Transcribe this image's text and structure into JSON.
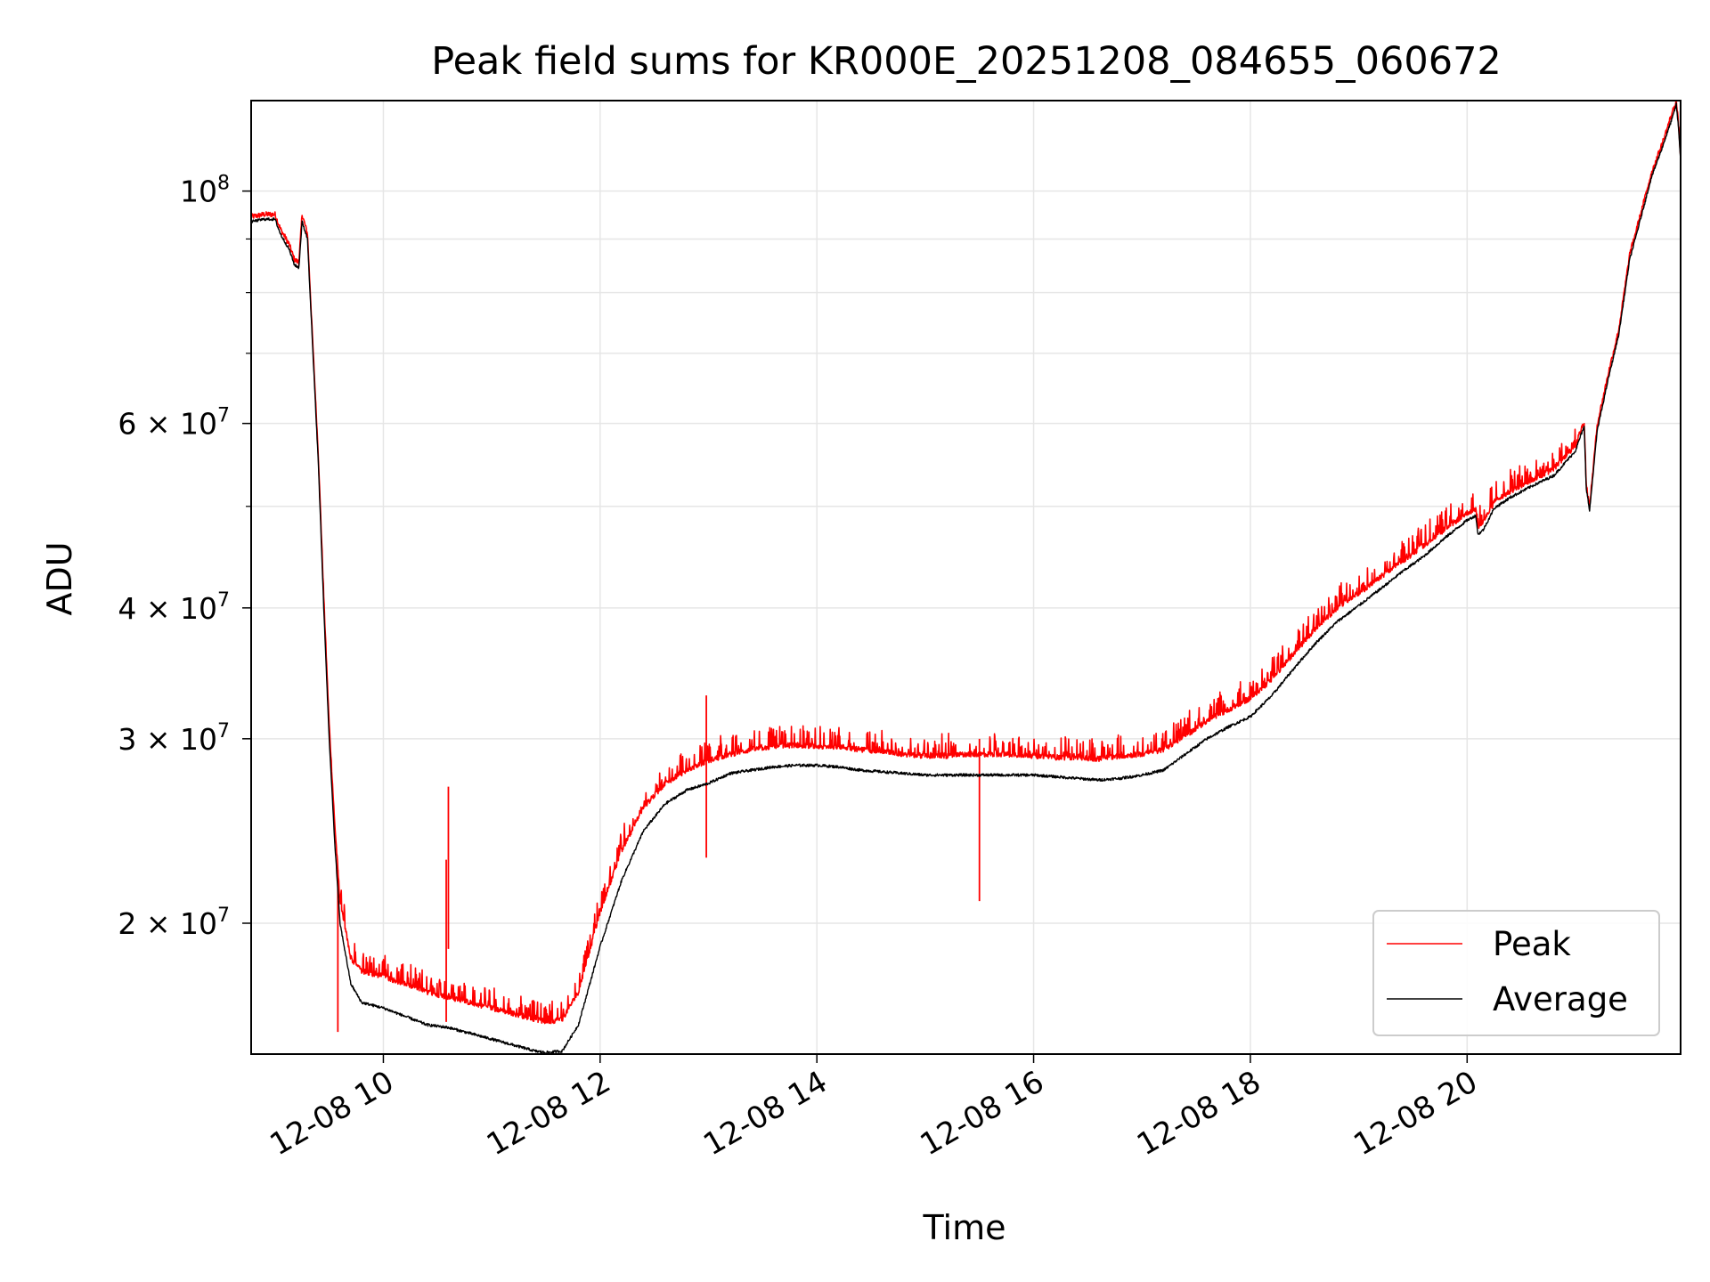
{
  "chart_data": {
    "type": "line",
    "title": "Peak field sums for KR000E_20251208_084655_060672",
    "xlabel": "Time",
    "ylabel": "ADU",
    "yscale": "log",
    "ylim": [
      15000000,
      122000000
    ],
    "xlim_hours": [
      8.78,
      21.97
    ],
    "grid": true,
    "legend_position": "lower-right",
    "x_ticks": [
      {
        "value": 10,
        "label": "12-08 10"
      },
      {
        "value": 12,
        "label": "12-08 12"
      },
      {
        "value": 14,
        "label": "12-08 14"
      },
      {
        "value": 16,
        "label": "12-08 16"
      },
      {
        "value": 18,
        "label": "12-08 18"
      },
      {
        "value": 20,
        "label": "12-08 20"
      }
    ],
    "y_ticks": [
      {
        "value": 20000000,
        "mantissa": "2 × 10",
        "exponent": "7"
      },
      {
        "value": 30000000,
        "mantissa": "3 × 10",
        "exponent": "7"
      },
      {
        "value": 40000000,
        "mantissa": "4 × 10",
        "exponent": "7"
      },
      {
        "value": 60000000,
        "mantissa": "6 × 10",
        "exponent": "7"
      },
      {
        "value": 100000000,
        "mantissa": "10",
        "exponent": "8"
      }
    ],
    "y_minor_ticks": [
      50000000,
      70000000,
      80000000,
      90000000
    ],
    "series": [
      {
        "name": "Average",
        "color": "#000000",
        "x": [
          8.78,
          8.9,
          9.0,
          9.05,
          9.13,
          9.18,
          9.22,
          9.25,
          9.3,
          9.35,
          9.4,
          9.45,
          9.5,
          9.55,
          9.6,
          9.7,
          9.8,
          10.0,
          10.2,
          10.4,
          10.6,
          10.8,
          11.0,
          11.2,
          11.4,
          11.5,
          11.65,
          11.8,
          12.0,
          12.2,
          12.4,
          12.6,
          12.8,
          13.0,
          13.2,
          13.4,
          13.6,
          13.8,
          14.0,
          14.2,
          14.4,
          14.6,
          14.8,
          15.0,
          15.2,
          15.4,
          15.6,
          15.8,
          16.0,
          16.2,
          16.4,
          16.6,
          16.8,
          17.0,
          17.2,
          17.4,
          17.6,
          17.8,
          18.0,
          18.2,
          18.4,
          18.6,
          18.8,
          19.0,
          19.2,
          19.4,
          19.6,
          19.8,
          20.0,
          20.08,
          20.1,
          20.15,
          20.25,
          20.4,
          20.6,
          20.8,
          21.0,
          21.05,
          21.08,
          21.1,
          21.13,
          21.2,
          21.3,
          21.4,
          21.5,
          21.6,
          21.7,
          21.8,
          21.9,
          21.93,
          21.95,
          21.97
        ],
        "values": [
          93500000,
          94000000,
          94000000,
          91000000,
          88000000,
          85000000,
          84500000,
          93500000,
          90000000,
          70000000,
          55000000,
          40000000,
          30000000,
          24000000,
          20000000,
          17500000,
          16800000,
          16600000,
          16300000,
          16000000,
          15900000,
          15700000,
          15500000,
          15300000,
          15100000,
          15050000,
          15100000,
          16000000,
          19000000,
          22000000,
          24500000,
          26000000,
          26800000,
          27200000,
          27800000,
          28000000,
          28200000,
          28300000,
          28300000,
          28200000,
          28000000,
          27900000,
          27800000,
          27700000,
          27700000,
          27700000,
          27700000,
          27700000,
          27700000,
          27600000,
          27500000,
          27400000,
          27500000,
          27700000,
          28000000,
          29000000,
          30000000,
          30800000,
          31500000,
          33000000,
          35000000,
          37000000,
          38800000,
          40200000,
          41700000,
          43300000,
          44800000,
          46700000,
          48500000,
          49000000,
          47000000,
          47500000,
          49800000,
          51000000,
          52300000,
          53500000,
          56500000,
          58500000,
          59500000,
          52000000,
          49500000,
          59000000,
          66000000,
          73000000,
          86000000,
          94000000,
          103000000,
          110000000,
          118000000,
          121000000,
          115000000,
          107000000
        ]
      },
      {
        "name": "Peak",
        "color": "#ff0000",
        "x": [
          8.78,
          8.9,
          9.0,
          9.05,
          9.13,
          9.18,
          9.22,
          9.25,
          9.3,
          9.35,
          9.4,
          9.45,
          9.5,
          9.55,
          9.6,
          9.7,
          9.8,
          10.0,
          10.2,
          10.4,
          10.6,
          10.8,
          11.0,
          11.2,
          11.4,
          11.5,
          11.65,
          11.8,
          12.0,
          12.2,
          12.4,
          12.6,
          12.8,
          13.0,
          13.2,
          13.4,
          13.6,
          13.8,
          14.0,
          14.2,
          14.4,
          14.6,
          14.8,
          15.0,
          15.2,
          15.4,
          15.6,
          15.8,
          16.0,
          16.2,
          16.4,
          16.6,
          16.8,
          17.0,
          17.2,
          17.4,
          17.6,
          17.8,
          18.0,
          18.2,
          18.4,
          18.6,
          18.8,
          19.0,
          19.2,
          19.4,
          19.6,
          19.8,
          20.0,
          20.08,
          20.1,
          20.15,
          20.25,
          20.4,
          20.6,
          20.8,
          21.0,
          21.05,
          21.08,
          21.1,
          21.13,
          21.2,
          21.3,
          21.4,
          21.5,
          21.6,
          21.7,
          21.8,
          21.9,
          21.93,
          21.95,
          21.97
        ],
        "values": [
          94500000,
          95000000,
          95000000,
          92000000,
          89000000,
          86000000,
          85500000,
          95000000,
          91000000,
          71000000,
          56000000,
          41000000,
          31000000,
          25000000,
          21000000,
          18500000,
          18000000,
          17800000,
          17500000,
          17200000,
          17000000,
          16800000,
          16600000,
          16400000,
          16200000,
          16100000,
          16200000,
          17200000,
          20500000,
          23500000,
          25800000,
          27200000,
          28000000,
          28600000,
          29000000,
          29300000,
          29500000,
          29600000,
          29500000,
          29500000,
          29300000,
          29200000,
          29000000,
          28900000,
          28900000,
          29000000,
          29000000,
          29000000,
          28900000,
          28800000,
          28800000,
          28700000,
          28900000,
          29000000,
          29300000,
          30200000,
          31200000,
          32000000,
          32800000,
          34200000,
          36200000,
          38200000,
          40000000,
          41300000,
          42800000,
          44300000,
          45900000,
          47600000,
          49300000,
          49700000,
          47800000,
          48300000,
          50500000,
          51700000,
          53000000,
          54300000,
          57200000,
          59200000,
          60200000,
          52500000,
          50000000,
          59800000,
          66800000,
          73800000,
          87000000,
          95000000,
          104000000,
          111000000,
          119500000,
          122000000,
          116000000,
          108000000
        ]
      }
    ],
    "spikes": [
      {
        "x": 10.58,
        "value": 23000000
      },
      {
        "x": 10.6,
        "value": 27000000
      },
      {
        "x": 12.98,
        "value": 33000000
      },
      {
        "x": 9.58,
        "value": 22500000
      },
      {
        "x": 15.5,
        "value": 30000000
      }
    ]
  }
}
